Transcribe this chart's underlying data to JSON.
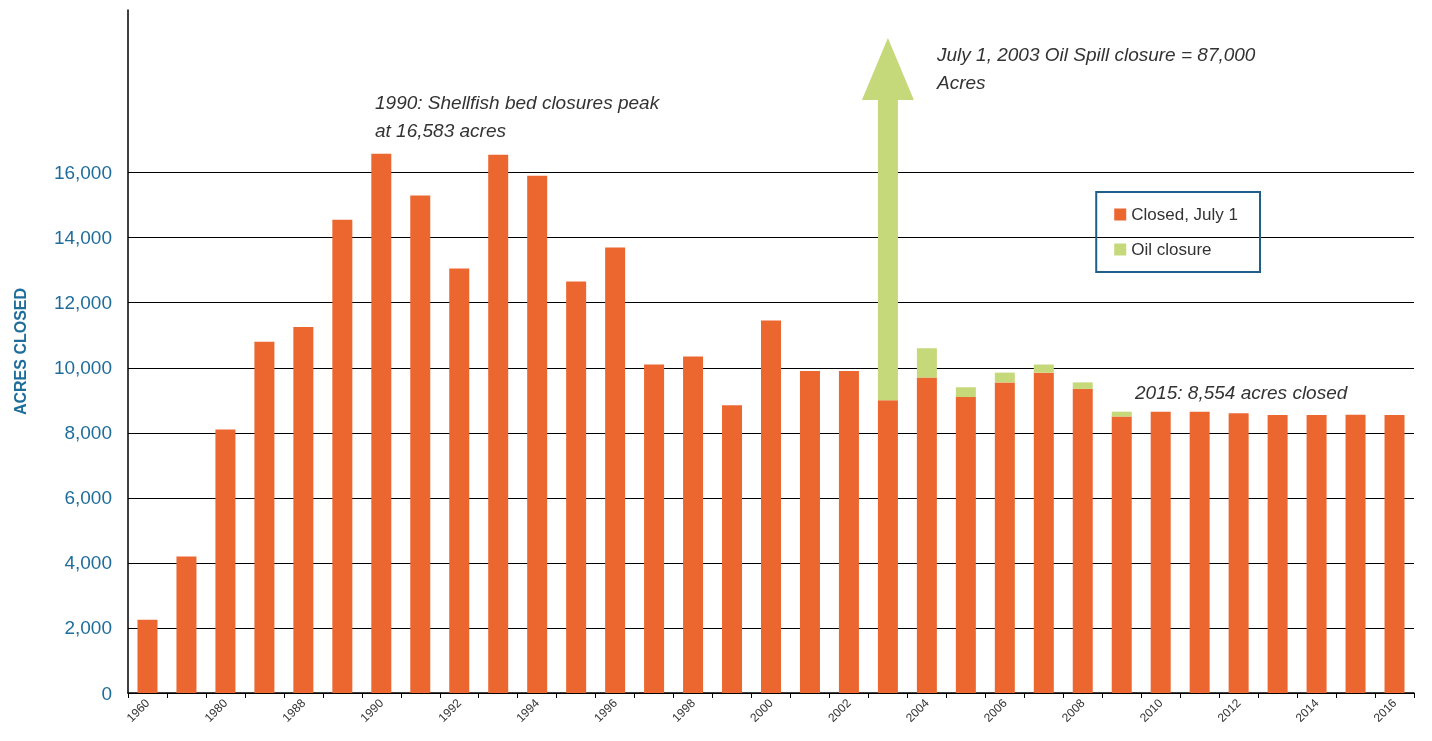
{
  "chart_data": {
    "type": "bar",
    "stacked": true,
    "ylabel": "ACRES CLOSED",
    "categories": [
      "1960",
      null,
      "1980",
      null,
      "1988",
      null,
      "1990",
      null,
      "1992",
      null,
      "1994",
      null,
      "1996",
      null,
      "1998",
      null,
      "2000",
      null,
      "2002",
      null,
      "2004",
      null,
      "2006",
      null,
      "2008",
      null,
      "2010",
      null,
      "2012",
      null,
      "2014",
      null,
      "2016"
    ],
    "series": [
      {
        "name": "Closed, July 1",
        "color": "#ec6730",
        "values": [
          2250,
          4200,
          8100,
          10800,
          11250,
          14550,
          16583,
          15300,
          13050,
          16550,
          15900,
          12650,
          13700,
          10100,
          10350,
          8850,
          11450,
          9900,
          9900,
          9000,
          9700,
          9100,
          9550,
          9850,
          9350,
          8500,
          8650,
          8650,
          8600,
          8550,
          8550,
          8554,
          8550
        ]
      },
      {
        "name": "Oil closure",
        "color": "#c5d87a",
        "values": [
          null,
          null,
          null,
          null,
          null,
          null,
          null,
          null,
          null,
          null,
          null,
          null,
          null,
          null,
          null,
          null,
          null,
          null,
          null,
          null,
          900,
          300,
          300,
          250,
          200,
          150,
          null,
          null,
          null,
          null,
          null,
          null,
          null
        ]
      }
    ],
    "ylim": [
      0,
      21000
    ],
    "yticks": [
      0,
      {
        "value": 2000,
        "label": "2,000"
      },
      {
        "value": 4000,
        "label": "4,000"
      },
      {
        "value": 6000,
        "label": "6,000"
      },
      {
        "value": 8000,
        "label": "8,000"
      },
      {
        "value": 10000,
        "label": "10,000"
      },
      {
        "value": 12000,
        "label": "12,000"
      },
      {
        "value": 14000,
        "label": "14,000"
      },
      {
        "value": 16000,
        "label": "16,000"
      }
    ],
    "grid": "y",
    "legend": "top right",
    "annotations": [
      "1990: Shellfish bed closures peak at 16,583 acres",
      "July 1, 2003 Oil Spill closure = 87,000 Acres",
      "2015: 8,554 acres closed"
    ]
  }
}
